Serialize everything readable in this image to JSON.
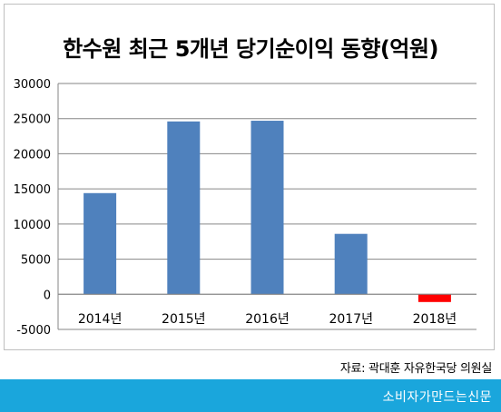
{
  "chart_data": {
    "type": "bar",
    "title": "한수원 최근 5개년 당기순이익 동향(억원)",
    "categories": [
      "2014년",
      "2015년",
      "2016년",
      "2017년",
      "2018년"
    ],
    "values": [
      14400,
      24600,
      24700,
      8600,
      -1100
    ],
    "ylim": [
      -5000,
      30000
    ],
    "yticks": [
      30000,
      25000,
      20000,
      15000,
      10000,
      5000,
      0,
      -5000
    ],
    "grid": true,
    "colors": {
      "positive": "#4f81bd",
      "negative": "#ff0000",
      "grid": "#868686",
      "axis": "#868686"
    }
  },
  "source_note": "자료: 곽대훈 자유한국당 의원실",
  "footer": {
    "label": "소비자가만드는신문",
    "color": "#1aa6dc"
  }
}
